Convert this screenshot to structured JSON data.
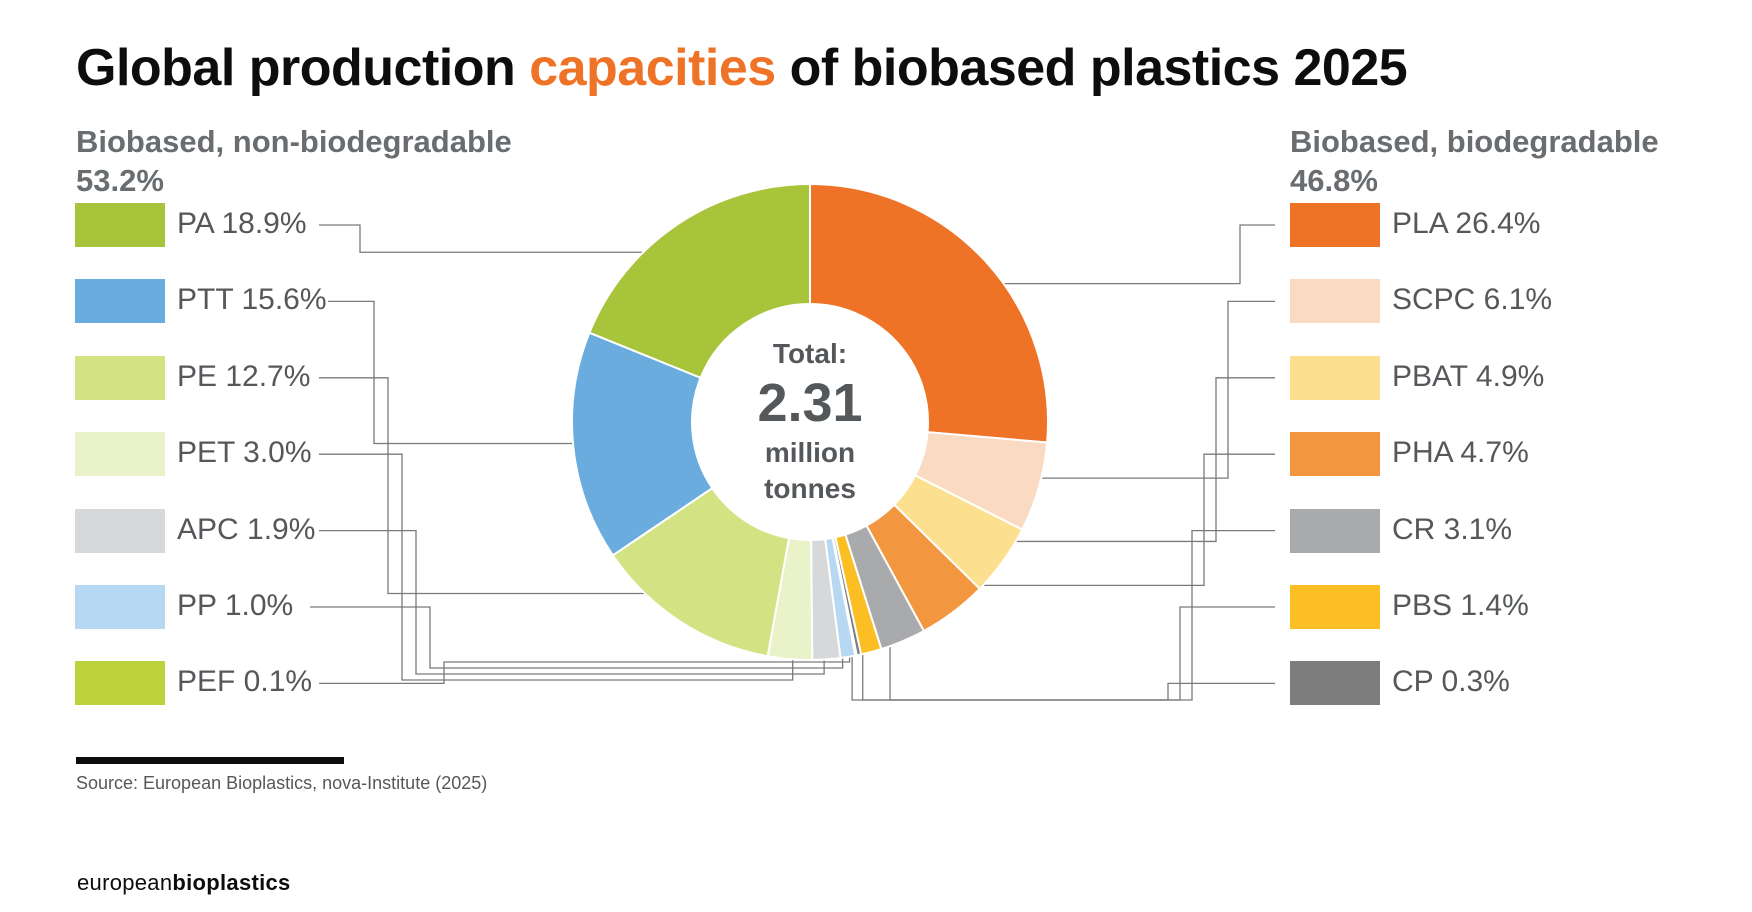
{
  "title": {
    "before": "Global production ",
    "highlight": "capacities",
    "after": " of biobased plastics 2025"
  },
  "colors": {
    "accent": "#ee7326",
    "text": "#0d0d0d",
    "muted": "#55585b",
    "leader": "#7a7a7a"
  },
  "groups": {
    "left": {
      "name": "Biobased, non-biodegradable",
      "share": "53.2%"
    },
    "right": {
      "name": "Biobased, biodegradable",
      "share": "46.8%"
    }
  },
  "center": {
    "label": "Total:",
    "value": "2.31",
    "unit_line1": "million",
    "unit_line2": "tonnes"
  },
  "chart_data": {
    "type": "donut",
    "title": "Global production capacities of biobased plastics 2025",
    "total": "2.31 million tonnes",
    "unit": "%",
    "series": [
      {
        "name": "PLA",
        "value": 26.4,
        "label": "PLA 26.4%",
        "group": "right",
        "color": "#ee7326"
      },
      {
        "name": "SCPC",
        "value": 6.1,
        "label": "SCPC 6.1%",
        "group": "right",
        "color": "#fbdac2"
      },
      {
        "name": "PBAT",
        "value": 4.9,
        "label": "PBAT 4.9%",
        "group": "right",
        "color": "#fce08f"
      },
      {
        "name": "PHA",
        "value": 4.7,
        "label": "PHA 4.7%",
        "group": "right",
        "color": "#f39640"
      },
      {
        "name": "CR",
        "value": 3.1,
        "label": "CR 3.1%",
        "group": "right",
        "color": "#a8aaac"
      },
      {
        "name": "PBS",
        "value": 1.4,
        "label": "PBS 1.4%",
        "group": "right",
        "color": "#fbbf24"
      },
      {
        "name": "CP",
        "value": 0.3,
        "label": "CP 0.3%",
        "group": "right",
        "color": "#7d7d7d"
      },
      {
        "name": "PEF",
        "value": 0.1,
        "label": "PEF 0.1%",
        "group": "left",
        "color": "#bed23c"
      },
      {
        "name": "PP",
        "value": 1.0,
        "label": "PP 1.0%",
        "group": "left",
        "color": "#b7d8f2"
      },
      {
        "name": "APC",
        "value": 1.9,
        "label": "APC 1.9%",
        "group": "left",
        "color": "#d7d8da"
      },
      {
        "name": "PET",
        "value": 3.0,
        "label": "PET 3.0%",
        "group": "left",
        "color": "#e9f2c8"
      },
      {
        "name": "PE",
        "value": 12.7,
        "label": "PE 12.7%",
        "group": "left",
        "color": "#d3e283"
      },
      {
        "name": "PTT",
        "value": 15.6,
        "label": "PTT 15.6%",
        "group": "left",
        "color": "#6aacdd"
      },
      {
        "name": "PA",
        "value": 18.9,
        "label": "PA 18.9%",
        "group": "left",
        "color": "#a7c43a"
      }
    ],
    "legend_left_order": [
      "PA",
      "PTT",
      "PE",
      "PET",
      "APC",
      "PP",
      "PEF"
    ],
    "legend_right_order": [
      "PLA",
      "SCPC",
      "PBAT",
      "PHA",
      "CR",
      "PBS",
      "CP"
    ]
  },
  "source": "Source: European Bioplastics, nova-Institute (2025)",
  "logo": {
    "part1": "european",
    "part2": "bioplastics"
  }
}
